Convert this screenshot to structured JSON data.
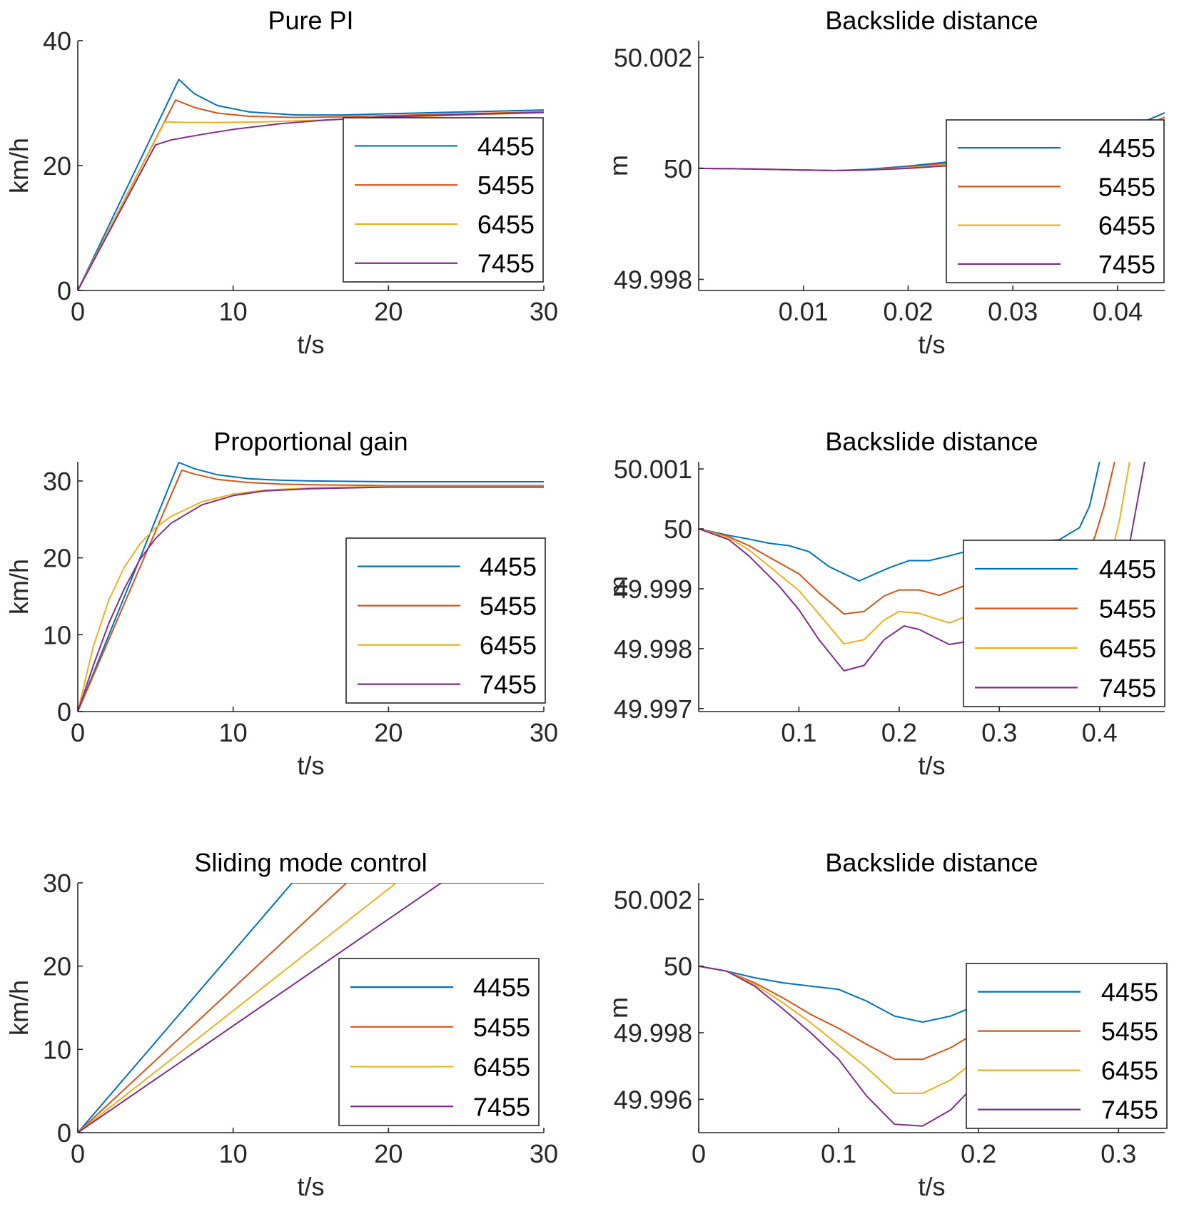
{
  "colors": {
    "4455": "#0072BD",
    "5455": "#D95319",
    "6455": "#EDB120",
    "7455": "#7E2F8E"
  },
  "chart_data": [
    {
      "type": "line",
      "title": "Pure PI",
      "xlabel": "t/s",
      "ylabel": "km/h",
      "xlim": [
        0,
        30
      ],
      "ylim": [
        0,
        40
      ],
      "xticks": [
        0,
        10,
        20,
        30
      ],
      "xtick_labels": [
        "0",
        "10",
        "20",
        "30"
      ],
      "yticks": [
        0,
        20,
        40
      ],
      "ytick_labels": [
        "0",
        "20",
        "40"
      ],
      "legend_position": "right",
      "series": [
        {
          "name": "4455",
          "x": [
            0,
            6.5,
            7.5,
            9,
            11,
            14,
            17,
            20,
            25,
            30
          ],
          "y": [
            0,
            33.8,
            31.5,
            29.6,
            28.6,
            28.1,
            28.1,
            28.3,
            28.6,
            28.9
          ]
        },
        {
          "name": "5455",
          "x": [
            0,
            6.3,
            7.5,
            9,
            11,
            14,
            17,
            20,
            25,
            30
          ],
          "y": [
            0,
            30.5,
            29.3,
            28.4,
            27.9,
            27.7,
            27.8,
            28.0,
            28.3,
            28.6
          ]
        },
        {
          "name": "6455",
          "x": [
            0,
            5.6,
            7,
            9,
            12,
            16,
            20,
            25,
            30
          ],
          "y": [
            0,
            27.0,
            26.9,
            26.9,
            27.0,
            27.3,
            27.7,
            28.1,
            28.5
          ]
        },
        {
          "name": "7455",
          "x": [
            0,
            5.0,
            6,
            8,
            10,
            13,
            16,
            20,
            25,
            30
          ],
          "y": [
            0,
            23.3,
            24.1,
            25.0,
            25.8,
            26.7,
            27.3,
            27.8,
            28.2,
            28.5
          ]
        }
      ]
    },
    {
      "type": "line",
      "title": "Backslide distance",
      "xlabel": "t/s",
      "ylabel": "m",
      "xlim": [
        0.0,
        0.0445
      ],
      "ylim": [
        49.9978,
        50.0023
      ],
      "xticks": [
        0.01,
        0.02,
        0.03,
        0.04
      ],
      "xtick_labels": [
        "0.01",
        "0.02",
        "0.03",
        "0.04"
      ],
      "yticks": [
        49.998,
        50,
        50.002
      ],
      "ytick_labels": [
        "49.998",
        "50",
        "50.002"
      ],
      "legend_position": "right",
      "series": [
        {
          "name": "4455",
          "x": [
            0,
            0.005,
            0.01,
            0.013,
            0.016,
            0.02,
            0.024,
            0.03,
            0.035,
            0.04,
            0.042,
            0.0445
          ],
          "y": [
            50,
            49.99999,
            49.99997,
            49.99996,
            49.99998,
            50.00004,
            50.00012,
            50.00028,
            50.00042,
            50.00058,
            50.0008,
            50.001
          ]
        },
        {
          "name": "5455",
          "x": [
            0,
            0.005,
            0.01,
            0.013,
            0.016,
            0.02,
            0.024,
            0.03,
            0.035,
            0.04,
            0.042,
            0.0445
          ],
          "y": [
            50,
            49.99999,
            49.99997,
            49.99996,
            49.99997,
            50.00002,
            50.00009,
            50.00024,
            50.00038,
            50.00053,
            50.00072,
            50.00092
          ]
        },
        {
          "name": "6455",
          "x": [
            0,
            0.005,
            0.01,
            0.013,
            0.016,
            0.02,
            0.024,
            0.03,
            0.035,
            0.04,
            0.042,
            0.0445
          ],
          "y": [
            50,
            49.99999,
            49.99997,
            49.99996,
            49.99997,
            50.00001,
            50.00007,
            50.0002,
            50.00034,
            50.00048,
            50.00066,
            50.00086
          ]
        },
        {
          "name": "7455",
          "x": [
            0,
            0.005,
            0.01,
            0.013,
            0.016,
            0.02,
            0.024,
            0.03,
            0.035,
            0.04,
            0.042,
            0.0445
          ],
          "y": [
            50,
            49.99999,
            49.99997,
            49.99996,
            49.99997,
            50.0,
            50.00005,
            50.00017,
            50.0003,
            50.00044,
            50.00062,
            50.0008
          ]
        }
      ]
    },
    {
      "type": "line",
      "title": "Proportional gain",
      "xlabel": "t/s",
      "ylabel": "km/h",
      "xlim": [
        0,
        30
      ],
      "ylim": [
        0,
        32.5
      ],
      "xticks": [
        0,
        10,
        20,
        30
      ],
      "xtick_labels": [
        "0",
        "10",
        "20",
        "30"
      ],
      "yticks": [
        0,
        10,
        20,
        30
      ],
      "ytick_labels": [
        "0",
        "10",
        "20",
        "30"
      ],
      "legend_position": "right",
      "series": [
        {
          "name": "4455",
          "x": [
            0,
            6.5,
            7.5,
            9,
            11,
            13,
            15,
            20,
            30
          ],
          "y": [
            0,
            32.4,
            31.6,
            30.8,
            30.3,
            30.1,
            30.0,
            29.9,
            29.9
          ]
        },
        {
          "name": "5455",
          "x": [
            0,
            6.7,
            7.5,
            9,
            11,
            13,
            15,
            20,
            30
          ],
          "y": [
            0,
            31.4,
            30.9,
            30.2,
            29.8,
            29.6,
            29.5,
            29.4,
            29.4
          ]
        },
        {
          "name": "6455",
          "x": [
            0,
            1,
            2,
            3,
            4,
            5,
            6,
            8,
            10,
            12,
            15,
            20,
            30
          ],
          "y": [
            0,
            8.5,
            14.5,
            18.8,
            21.8,
            23.9,
            25.4,
            27.3,
            28.3,
            28.8,
            29.1,
            29.3,
            29.3
          ]
        },
        {
          "name": "7455",
          "x": [
            0,
            1,
            2,
            3,
            4,
            5,
            6,
            8,
            10,
            12,
            15,
            20,
            30
          ],
          "y": [
            0,
            6.0,
            11.5,
            16.0,
            19.8,
            22.5,
            24.5,
            26.9,
            28.1,
            28.7,
            29.0,
            29.2,
            29.2
          ]
        }
      ]
    },
    {
      "type": "line",
      "title": "Backslide distance",
      "xlabel": "t/s",
      "ylabel": "m",
      "xlim": [
        0.0,
        0.465
      ],
      "ylim": [
        49.99695,
        50.00112
      ],
      "xticks": [
        0.1,
        0.2,
        0.3,
        0.4
      ],
      "xtick_labels": [
        "0.1",
        "0.2",
        "0.3",
        "0.4"
      ],
      "yticks": [
        49.997,
        49.998,
        49.999,
        50,
        50.001
      ],
      "ytick_labels": [
        "49.997",
        "49.998",
        "49.999",
        "50",
        "50.001"
      ],
      "legend_position": "right",
      "series": [
        {
          "name": "4455",
          "x": [
            0,
            0.03,
            0.05,
            0.07,
            0.09,
            0.11,
            0.13,
            0.16,
            0.19,
            0.21,
            0.23,
            0.25,
            0.28,
            0.32,
            0.36,
            0.38,
            0.39,
            0.4
          ],
          "y": [
            50,
            49.99989,
            49.99983,
            49.99976,
            49.99972,
            49.99962,
            49.99937,
            49.99913,
            49.99935,
            49.99947,
            49.99947,
            49.99955,
            49.99968,
            49.99975,
            49.99982,
            50.00002,
            50.00038,
            50.00112
          ]
        },
        {
          "name": "5455",
          "x": [
            0,
            0.03,
            0.05,
            0.07,
            0.1,
            0.12,
            0.145,
            0.165,
            0.185,
            0.2,
            0.22,
            0.24,
            0.27,
            0.3,
            0.34,
            0.38,
            0.395,
            0.405,
            0.415
          ],
          "y": [
            50,
            49.99987,
            49.99972,
            49.99953,
            49.99925,
            49.99893,
            49.99858,
            49.99862,
            49.99888,
            49.99898,
            49.99898,
            49.99889,
            49.99908,
            49.99922,
            49.99935,
            49.99948,
            49.99985,
            50.0004,
            50.00112
          ]
        },
        {
          "name": "6455",
          "x": [
            0,
            0.03,
            0.05,
            0.07,
            0.1,
            0.12,
            0.145,
            0.165,
            0.185,
            0.2,
            0.22,
            0.25,
            0.28,
            0.32,
            0.36,
            0.4,
            0.41,
            0.42,
            0.43
          ],
          "y": [
            50,
            49.99985,
            49.99965,
            49.99938,
            49.99897,
            49.99858,
            49.99808,
            49.99815,
            49.99848,
            49.99862,
            49.99859,
            49.99843,
            49.99862,
            49.99878,
            49.99892,
            49.99905,
            49.99945,
            50.00015,
            50.00112
          ]
        },
        {
          "name": "7455",
          "x": [
            0,
            0.03,
            0.05,
            0.08,
            0.1,
            0.12,
            0.145,
            0.165,
            0.185,
            0.205,
            0.22,
            0.25,
            0.28,
            0.32,
            0.36,
            0.41,
            0.42,
            0.43,
            0.445
          ],
          "y": [
            50,
            49.99982,
            49.99955,
            49.99905,
            49.99865,
            49.99815,
            49.99763,
            49.99772,
            49.99815,
            49.99838,
            49.99832,
            49.99807,
            49.99815,
            49.99832,
            49.99845,
            49.99858,
            49.99902,
            49.99975,
            50.00112
          ]
        }
      ]
    },
    {
      "type": "line",
      "title": "Sliding mode control",
      "xlabel": "t/s",
      "ylabel": "km/h",
      "xlim": [
        0,
        30
      ],
      "ylim": [
        0,
        30
      ],
      "xticks": [
        0,
        10,
        20,
        30
      ],
      "xtick_labels": [
        "0",
        "10",
        "20",
        "30"
      ],
      "yticks": [
        0,
        10,
        20,
        30
      ],
      "ytick_labels": [
        "0",
        "10",
        "20",
        "30"
      ],
      "legend_position": "right",
      "series": [
        {
          "name": "4455",
          "x": [
            0,
            13.8,
            30
          ],
          "y": [
            0,
            30,
            30
          ]
        },
        {
          "name": "5455",
          "x": [
            0,
            17.3,
            30
          ],
          "y": [
            0,
            30,
            30
          ]
        },
        {
          "name": "6455",
          "x": [
            0,
            20.5,
            30
          ],
          "y": [
            0,
            30,
            30
          ]
        },
        {
          "name": "7455",
          "x": [
            0,
            23.4,
            30
          ],
          "y": [
            0,
            30,
            30
          ]
        }
      ]
    },
    {
      "type": "line",
      "title": "Backslide distance",
      "xlabel": "t/s",
      "ylabel": "m",
      "xlim": [
        0,
        0.333
      ],
      "ylim": [
        49.995,
        50.0025
      ],
      "xticks": [
        0,
        0.1,
        0.2,
        0.3
      ],
      "xtick_labels": [
        "0",
        "0.1",
        "0.2",
        "0.3"
      ],
      "yticks": [
        49.996,
        49.998,
        50,
        50.002
      ],
      "ytick_labels": [
        "49.996",
        "49.998",
        "50",
        "50.002"
      ],
      "legend_position": "right",
      "series": [
        {
          "name": "4455",
          "x": [
            0,
            0.02,
            0.04,
            0.06,
            0.08,
            0.1,
            0.12,
            0.14,
            0.16,
            0.18,
            0.2
          ],
          "y": [
            50,
            49.99985,
            49.99965,
            49.9995,
            49.9994,
            49.9993,
            49.99895,
            49.9985,
            49.99832,
            49.9985,
            49.99885
          ]
        },
        {
          "name": "5455",
          "x": [
            0,
            0.02,
            0.04,
            0.06,
            0.08,
            0.1,
            0.12,
            0.14,
            0.16,
            0.18,
            0.2
          ],
          "y": [
            50,
            49.99985,
            49.9995,
            49.99905,
            49.99855,
            49.99813,
            49.99765,
            49.9972,
            49.9972,
            49.99755,
            49.99805
          ]
        },
        {
          "name": "6455",
          "x": [
            0,
            0.02,
            0.04,
            0.06,
            0.08,
            0.1,
            0.12,
            0.14,
            0.16,
            0.18,
            0.2
          ],
          "y": [
            50,
            49.99985,
            49.99945,
            49.9989,
            49.9983,
            49.99763,
            49.99695,
            49.99618,
            49.99618,
            49.99658,
            49.99725
          ]
        },
        {
          "name": "7455",
          "x": [
            0,
            0.02,
            0.04,
            0.06,
            0.08,
            0.1,
            0.12,
            0.14,
            0.16,
            0.18,
            0.2
          ],
          "y": [
            50,
            49.99985,
            49.9994,
            49.99872,
            49.998,
            49.9972,
            49.9961,
            49.99525,
            49.9952,
            49.99568,
            49.99655
          ]
        }
      ]
    }
  ]
}
